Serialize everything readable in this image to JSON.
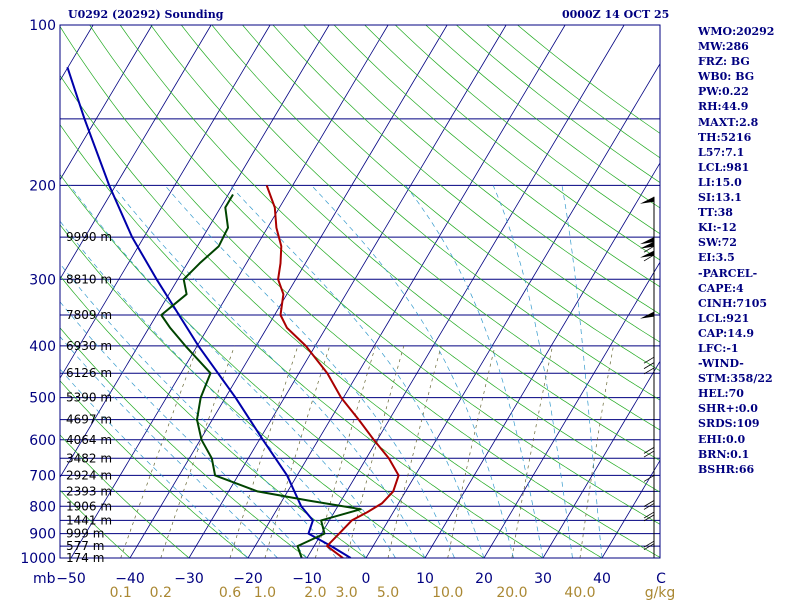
{
  "header": {
    "station_title": "U0292 (20292) Sounding",
    "datetime": "0000Z 14 OCT 25"
  },
  "indices": [
    "WMO:20292",
    "MW:286",
    "FRZ: BG",
    "WB0: BG",
    "PW:0.22",
    "RH:44.9",
    "MAXT:2.8",
    "TH:5216",
    "L57:7.1",
    "LCL:981",
    "LI:15.0",
    "SI:13.1",
    "TT:38",
    "KI:-12",
    "SW:72",
    "EI:3.5",
    "-PARCEL-",
    "CAPE:4",
    "CINH:7105",
    "LCL:921",
    "CAP:14.9",
    "LFC:-1",
    "-WIND-",
    "STM:358/22",
    "HEL:70",
    "SHR+:0.0",
    "SRDS:109",
    "EHI:0.0",
    "BRN:0.1",
    "BSHR:66"
  ],
  "colors": {
    "frame": "#000080",
    "isobar": "#000080",
    "isotherm": "#000080",
    "dry_adiabat": "#22aa22",
    "moist_adiabat": "#3399cc",
    "mixing_ratio": "#666633",
    "temperature": "#aa0000",
    "dewpoint": "#004400",
    "parcel": "#0000aa",
    "mixing_label": "#aa8833",
    "height_label": "#000000",
    "wind_barb": "#000000"
  },
  "chart_data": {
    "type": "skew-t log-p sounding",
    "title": "U0292 (20292) Sounding",
    "valid_time": "0000Z 14 OCT 25",
    "pressure_unit": "mb",
    "pressure_range": [
      1000,
      100
    ],
    "pressure_ticks": [
      100,
      200,
      300,
      400,
      500,
      600,
      700,
      800,
      900,
      1000
    ],
    "temperature_unit": "C",
    "temperature_ticks": [
      -50,
      -40,
      -30,
      -20,
      -10,
      0,
      10,
      20,
      30,
      40
    ],
    "temperature_tick_labels": [
      "−50",
      "−40",
      "−30",
      "−20",
      "−10",
      "0",
      "10",
      "20",
      "30",
      "40",
      "C"
    ],
    "mixing_ratio_unit": "g/kg",
    "mixing_ratio_labels": [
      "0.1",
      "0.2",
      "0.6",
      "1.0",
      "2.0",
      "3.0",
      "5.0",
      "10.0",
      "20.0",
      "40.0"
    ],
    "unit_label_temperature": "C",
    "unit_label_pressure": "mb",
    "unit_label_mixing": "g/kg",
    "height_levels": [
      {
        "p": 1000,
        "label": "174 m"
      },
      {
        "p": 950,
        "label": "577 m"
      },
      {
        "p": 900,
        "label": "999 m"
      },
      {
        "p": 850,
        "label": "1441 m"
      },
      {
        "p": 800,
        "label": "1906 m"
      },
      {
        "p": 750,
        "label": "2393 m"
      },
      {
        "p": 700,
        "label": "2924 m"
      },
      {
        "p": 650,
        "label": "3482 m"
      },
      {
        "p": 600,
        "label": "4064 m"
      },
      {
        "p": 550,
        "label": "4697 m"
      },
      {
        "p": 500,
        "label": "5390 m"
      },
      {
        "p": 450,
        "label": "6126 m"
      },
      {
        "p": 400,
        "label": "6930 m"
      },
      {
        "p": 350,
        "label": "7809 m"
      },
      {
        "p": 300,
        "label": "8810 m"
      },
      {
        "p": 250,
        "label": "9990 m"
      }
    ],
    "temperature": [
      {
        "p": 1000,
        "t": -3.9
      },
      {
        "p": 950,
        "t": -7.8
      },
      {
        "p": 900,
        "t": -7.0
      },
      {
        "p": 850,
        "t": -6.2
      },
      {
        "p": 820,
        "t": -4.4
      },
      {
        "p": 790,
        "t": -2.8
      },
      {
        "p": 750,
        "t": -2.1
      },
      {
        "p": 700,
        "t": -2.8
      },
      {
        "p": 650,
        "t": -6.2
      },
      {
        "p": 600,
        "t": -10.6
      },
      {
        "p": 550,
        "t": -15.2
      },
      {
        "p": 500,
        "t": -20.4
      },
      {
        "p": 450,
        "t": -25.2
      },
      {
        "p": 400,
        "t": -31.6
      },
      {
        "p": 370,
        "t": -36.6
      },
      {
        "p": 350,
        "t": -39.0
      },
      {
        "p": 320,
        "t": -40.6
      },
      {
        "p": 300,
        "t": -43.0
      },
      {
        "p": 280,
        "t": -44.2
      },
      {
        "p": 260,
        "t": -45.8
      },
      {
        "p": 240,
        "t": -48.5
      },
      {
        "p": 220,
        "t": -50.8
      },
      {
        "p": 200,
        "t": -54.4
      }
    ],
    "dewpoint": [
      {
        "p": 1000,
        "t": -10.9
      },
      {
        "p": 950,
        "t": -12.8
      },
      {
        "p": 900,
        "t": -9.5
      },
      {
        "p": 850,
        "t": -11.4
      },
      {
        "p": 810,
        "t": -5.8
      },
      {
        "p": 780,
        "t": -15.6
      },
      {
        "p": 750,
        "t": -25.1
      },
      {
        "p": 700,
        "t": -33.9
      },
      {
        "p": 650,
        "t": -36.2
      },
      {
        "p": 600,
        "t": -39.8
      },
      {
        "p": 550,
        "t": -42.6
      },
      {
        "p": 500,
        "t": -44.2
      },
      {
        "p": 450,
        "t": -45.0
      },
      {
        "p": 400,
        "t": -52.0
      },
      {
        "p": 370,
        "t": -56.4
      },
      {
        "p": 350,
        "t": -59.2
      },
      {
        "p": 320,
        "t": -57.0
      },
      {
        "p": 300,
        "t": -59.0
      },
      {
        "p": 280,
        "t": -57.9
      },
      {
        "p": 260,
        "t": -56.4
      },
      {
        "p": 240,
        "t": -56.7
      },
      {
        "p": 220,
        "t": -59.2
      },
      {
        "p": 208,
        "t": -59.2
      }
    ],
    "parcel": [
      {
        "p": 1000,
        "t": -2.6
      },
      {
        "p": 950,
        "t": -7.1
      },
      {
        "p": 900,
        "t": -12.2
      },
      {
        "p": 850,
        "t": -12.8
      },
      {
        "p": 800,
        "t": -16.2
      },
      {
        "p": 700,
        "t": -21.7
      },
      {
        "p": 600,
        "t": -29.4
      },
      {
        "p": 500,
        "t": -38.3
      },
      {
        "p": 400,
        "t": -49.8
      },
      {
        "p": 300,
        "t": -63.6
      },
      {
        "p": 250,
        "t": -72.0
      },
      {
        "p": 200,
        "t": -81.1
      },
      {
        "p": 150,
        "t": -92.0
      },
      {
        "p": 120,
        "t": -100.1
      }
    ]
  }
}
